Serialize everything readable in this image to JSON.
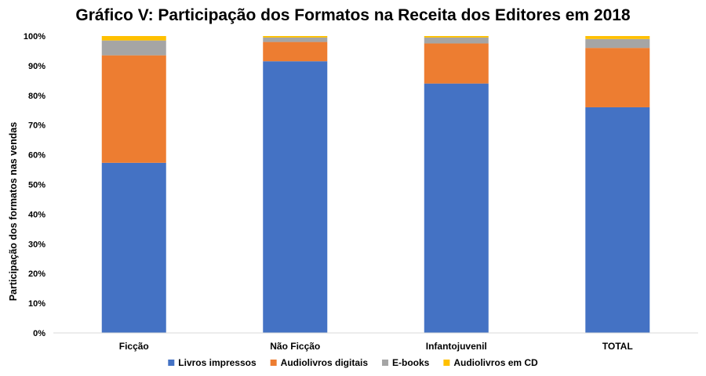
{
  "chart_data": {
    "type": "bar",
    "stacked": true,
    "title": "Gráfico V: Participação dos Formatos na Receita dos Editores em 2018",
    "xlabel": "",
    "ylabel": "Participação dos formatos nas vendas",
    "ylim": [
      0,
      100
    ],
    "y_ticks": [
      "0%",
      "10%",
      "20%",
      "30%",
      "40%",
      "50%",
      "60%",
      "70%",
      "80%",
      "90%",
      "100%"
    ],
    "grid": false,
    "legend_position": "bottom",
    "categories": [
      "Ficção",
      "Não Ficção",
      "Infantojuvenil",
      "TOTAL"
    ],
    "series": [
      {
        "name": "Livros impressos",
        "color": "#4472C4",
        "values": [
          57.3,
          91.5,
          84.0,
          76.0
        ]
      },
      {
        "name": "Audiolivros digitais",
        "color": "#ED7D31",
        "values": [
          36.2,
          6.5,
          13.5,
          20.0
        ]
      },
      {
        "name": "E-books",
        "color": "#A5A5A5",
        "values": [
          5.0,
          1.5,
          2.0,
          3.0
        ]
      },
      {
        "name": "Audiolivros em CD",
        "color": "#FFC000",
        "values": [
          1.5,
          0.5,
          0.5,
          1.0
        ]
      }
    ]
  }
}
